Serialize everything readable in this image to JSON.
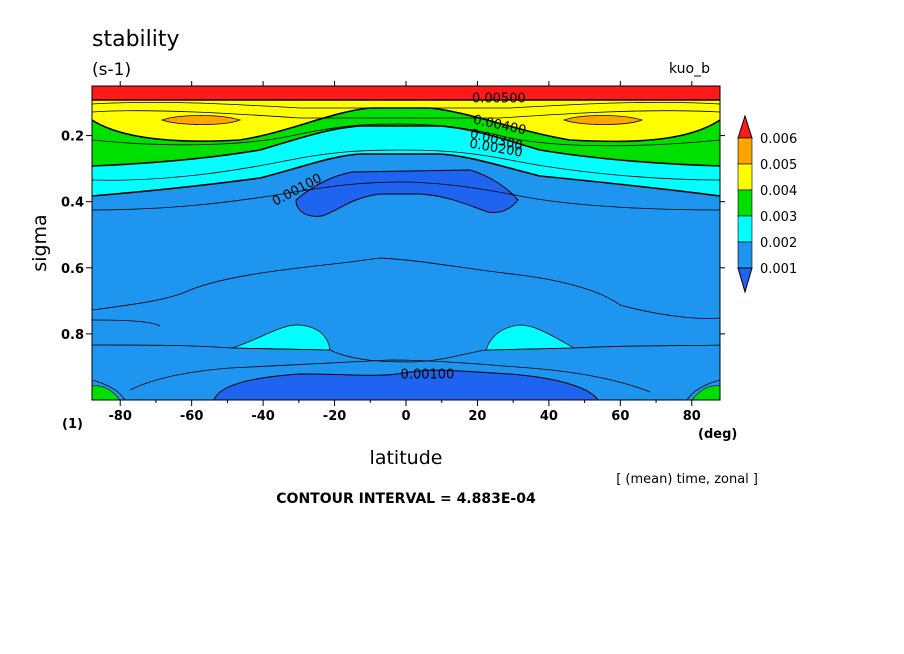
{
  "chart_data": {
    "type": "heatmap",
    "title": "stability",
    "units": "(s-1)",
    "experiment": "kuo_b",
    "xlabel": "latitude",
    "x_unit": "(deg)",
    "ylabel": "sigma",
    "y_corner_label": "(1)",
    "xlim": [
      -87.9,
      87.9
    ],
    "ylim": [
      0.05,
      1.0
    ],
    "y_inverted": true,
    "x_ticks": [
      -80,
      -60,
      -40,
      -20,
      0,
      20,
      40,
      60,
      80
    ],
    "x_tick_labels": [
      "-80",
      "-60",
      "-40",
      "-20",
      "0",
      "20",
      "40",
      "60",
      "80"
    ],
    "y_ticks": [
      0.2,
      0.4,
      0.6,
      0.8
    ],
    "y_tick_labels": [
      "0.2",
      "0.4",
      "0.6",
      "0.8"
    ],
    "note": "[ (mean) time, zonal ]",
    "contour_interval_text": "CONTOUR INTERVAL = 4.883E-04",
    "contour_labels": [
      {
        "text": "0.00500",
        "lat": 26,
        "sigma": 0.1
      },
      {
        "text": "0.00400",
        "lat": 26,
        "sigma": 0.18
      },
      {
        "text": "0.00300",
        "lat": 25,
        "sigma": 0.225
      },
      {
        "text": "0.00200",
        "lat": 25,
        "sigma": 0.25
      },
      {
        "text": "0.00100",
        "lat": -30,
        "sigma": 0.375
      },
      {
        "text": "0.00100",
        "lat": 6,
        "sigma": 0.935
      }
    ],
    "colorbar": {
      "labels": [
        "0.006",
        "0.005",
        "0.004",
        "0.003",
        "0.002",
        "0.001"
      ],
      "levels": [
        0.006,
        0.005,
        0.004,
        0.003,
        0.002,
        0.001
      ],
      "colors": [
        "#ff1a1a",
        "#ffa500",
        "#ffff00",
        "#00e000",
        "#00ffff",
        "#1e96f0",
        "#1e64f0"
      ]
    }
  }
}
